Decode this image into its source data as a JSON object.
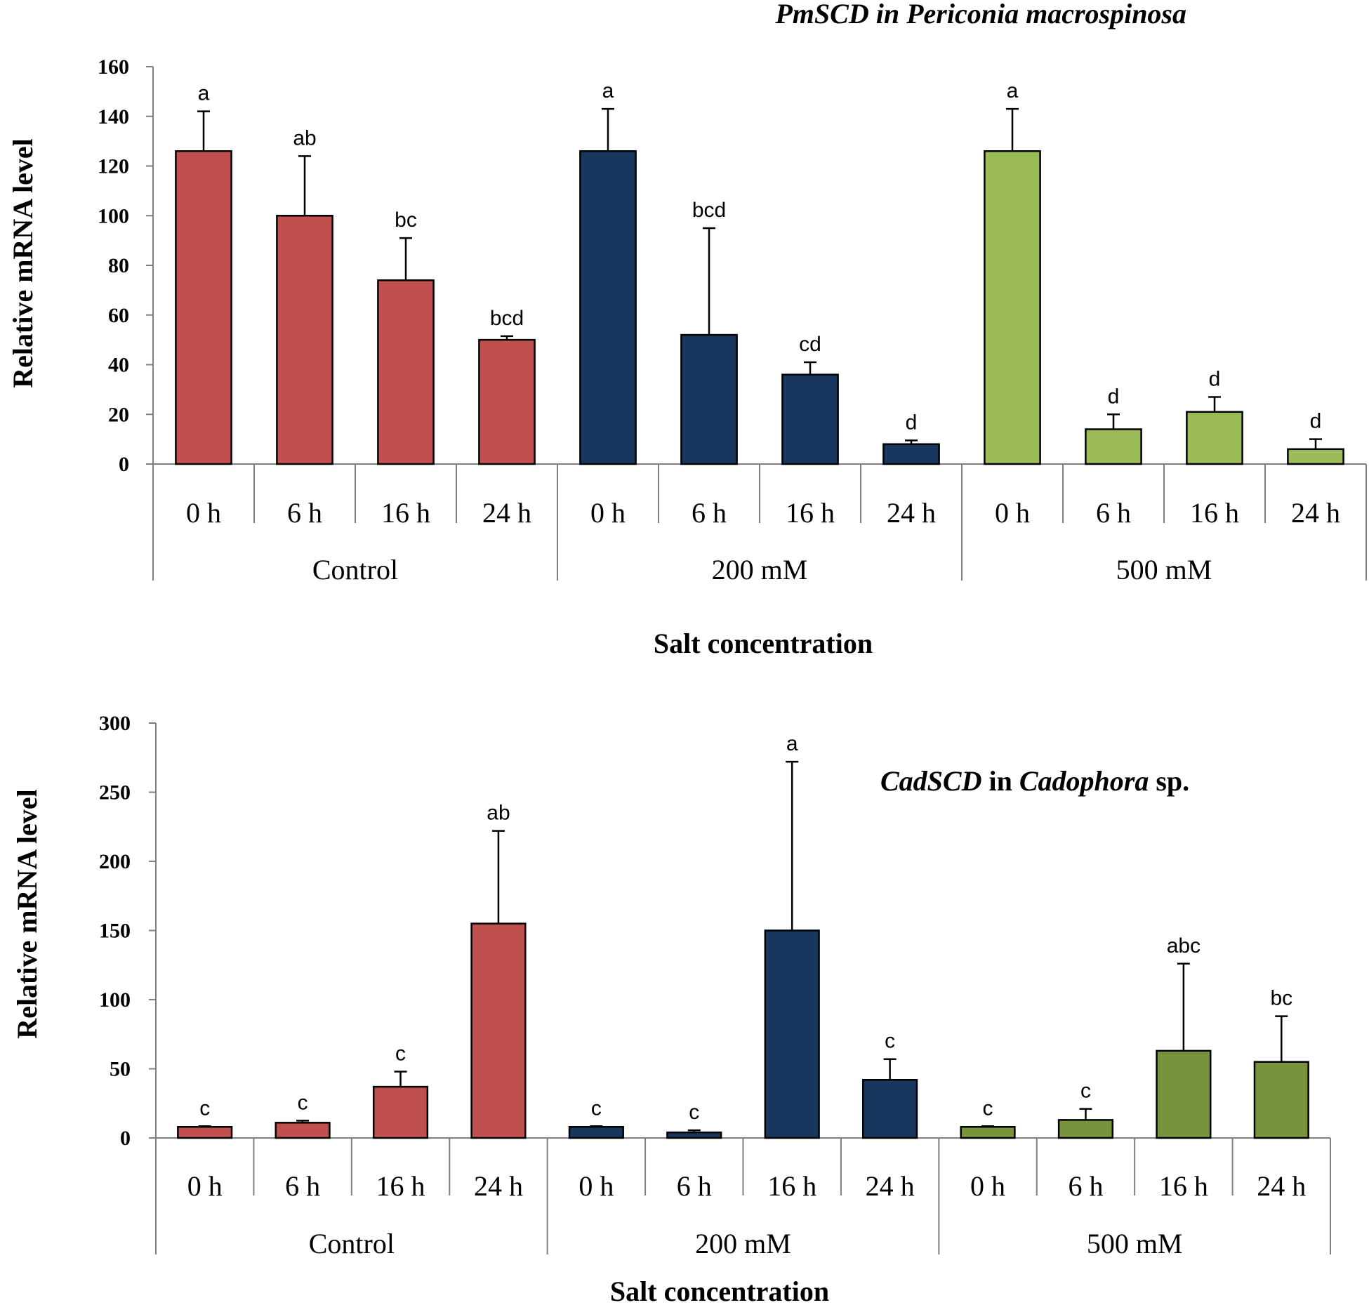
{
  "chart_data": [
    {
      "type": "bar",
      "title": "PmSCD in Periconia macrospinosa",
      "title_segments": [
        {
          "text": "PmSCD in Periconia macrospinosa",
          "italic": true
        }
      ],
      "ylabel": "Relative mRNA level",
      "xlabel": "Salt concentration",
      "ylim": [
        0,
        160
      ],
      "yticks": [
        0,
        20,
        40,
        60,
        80,
        100,
        120,
        140,
        160
      ],
      "groups": [
        {
          "name": "Control",
          "color": "#C0504D",
          "categories": [
            "0 h",
            "6 h",
            "16 h",
            "24 h"
          ],
          "values": [
            126,
            100,
            74,
            50
          ],
          "errors": [
            16,
            24,
            17,
            1.5
          ],
          "labels": [
            "a",
            "ab",
            "bc",
            "bcd"
          ]
        },
        {
          "name": "200 mM",
          "color": "#17375E",
          "categories": [
            "0 h",
            "6 h",
            "16 h",
            "24 h"
          ],
          "values": [
            126,
            52,
            36,
            8
          ],
          "errors": [
            17,
            43,
            5,
            1.5
          ],
          "labels": [
            "a",
            "bcd",
            "cd",
            "d"
          ]
        },
        {
          "name": "500 mM",
          "color": "#9BBB59",
          "categories": [
            "0 h",
            "6 h",
            "16 h",
            "24 h"
          ],
          "values": [
            126,
            14,
            21,
            6
          ],
          "errors": [
            17,
            6,
            6,
            4
          ],
          "labels": [
            "a",
            "d",
            "d",
            "d"
          ]
        }
      ]
    },
    {
      "type": "bar",
      "title": "CadSCD in Cadophora sp.",
      "title_segments": [
        {
          "text": "CadSCD",
          "italic": true
        },
        {
          "text": " in ",
          "italic": false
        },
        {
          "text": "Cadophora",
          "italic": true
        },
        {
          "text": " sp.",
          "italic": false
        }
      ],
      "ylabel": "Relative mRNA level",
      "xlabel": "Salt concentration",
      "ylim": [
        0,
        300
      ],
      "yticks": [
        0,
        50,
        100,
        150,
        200,
        250,
        300
      ],
      "groups": [
        {
          "name": "Control",
          "color": "#C0504D",
          "categories": [
            "0 h",
            "6 h",
            "16 h",
            "24 h"
          ],
          "values": [
            8,
            11,
            37,
            155
          ],
          "errors": [
            0.5,
            1.5,
            11,
            67
          ],
          "labels": [
            "c",
            "c",
            "c",
            "ab"
          ]
        },
        {
          "name": "200 mM",
          "color": "#17375E",
          "categories": [
            "0 h",
            "6 h",
            "16 h",
            "24 h"
          ],
          "values": [
            8,
            4,
            150,
            42
          ],
          "errors": [
            0.5,
            1.5,
            122,
            15
          ],
          "labels": [
            "c",
            "c",
            "a",
            "c"
          ]
        },
        {
          "name": "500 mM",
          "color": "#77933C",
          "categories": [
            "0 h",
            "6 h",
            "16 h",
            "24 h"
          ],
          "values": [
            8,
            13,
            63,
            55
          ],
          "errors": [
            0.5,
            8,
            63,
            33
          ],
          "labels": [
            "c",
            "c",
            "abc",
            "bc"
          ]
        }
      ]
    }
  ]
}
